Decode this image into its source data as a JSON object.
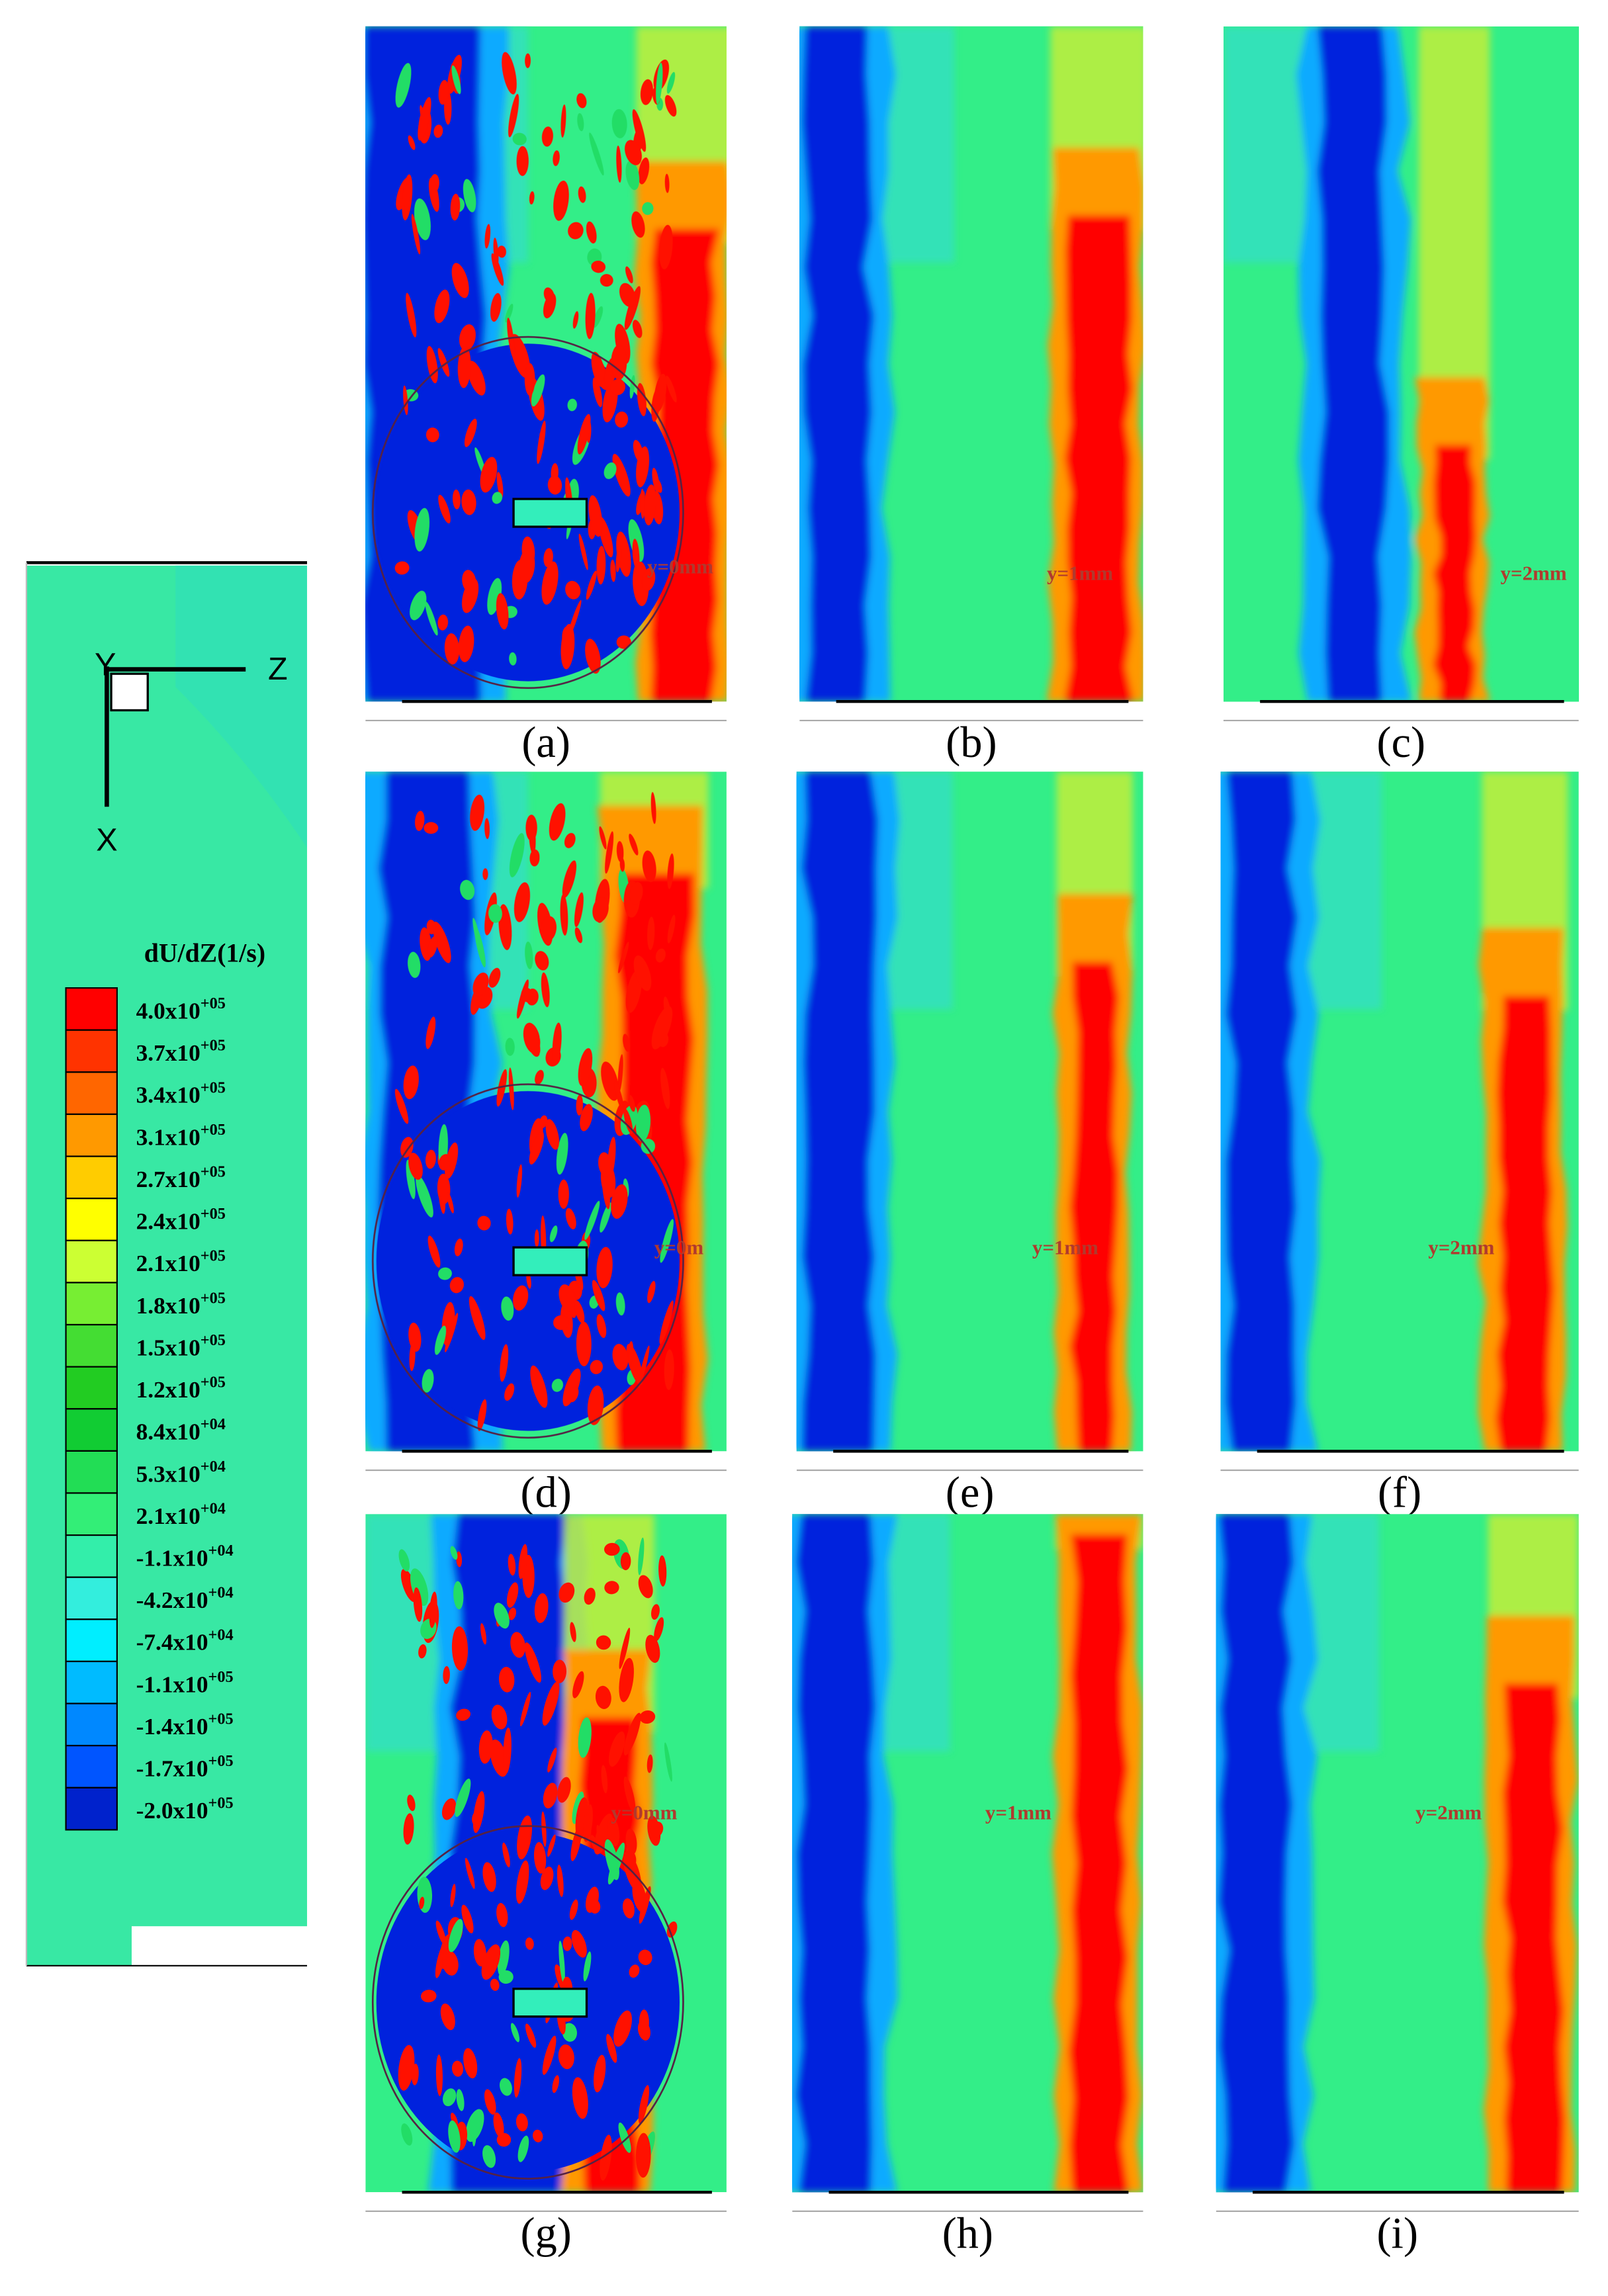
{
  "legend": {
    "title": "dU/dZ(1/s)",
    "levels": [
      {
        "base": "4.0x10",
        "exp": "+05",
        "color": "#ff0000"
      },
      {
        "base": "3.7x10",
        "exp": "+05",
        "color": "#ff3300"
      },
      {
        "base": "3.4x10",
        "exp": "+05",
        "color": "#ff6600"
      },
      {
        "base": "3.1x10",
        "exp": "+05",
        "color": "#ff9900"
      },
      {
        "base": "2.7x10",
        "exp": "+05",
        "color": "#ffcc00"
      },
      {
        "base": "2.4x10",
        "exp": "+05",
        "color": "#ffff00"
      },
      {
        "base": "2.1x10",
        "exp": "+05",
        "color": "#ccff33"
      },
      {
        "base": "1.8x10",
        "exp": "+05",
        "color": "#77ee33"
      },
      {
        "base": "1.5x10",
        "exp": "+05",
        "color": "#44dd33"
      },
      {
        "base": "1.2x10",
        "exp": "+05",
        "color": "#22cc22"
      },
      {
        "base": "8.4x10",
        "exp": "+04",
        "color": "#11cc33"
      },
      {
        "base": "5.3x10",
        "exp": "+04",
        "color": "#22dd55"
      },
      {
        "base": "2.1x10",
        "exp": "+04",
        "color": "#33ee77"
      },
      {
        "base": "-1.1x10",
        "exp": "+04",
        "color": "#33eeaa"
      },
      {
        "base": "-4.2x10",
        "exp": "+04",
        "color": "#33eedd"
      },
      {
        "base": "-7.4x10",
        "exp": "+04",
        "color": "#00eeff"
      },
      {
        "base": "-1.1x10",
        "exp": "+05",
        "color": "#00bbff"
      },
      {
        "base": "-1.4x10",
        "exp": "+05",
        "color": "#0088ff"
      },
      {
        "base": "-1.7x10",
        "exp": "+05",
        "color": "#0055ff"
      },
      {
        "base": "-2.0x10",
        "exp": "+05",
        "color": "#0022cc"
      }
    ]
  },
  "axes": {
    "y": "Y",
    "z": "Z",
    "x": "X"
  },
  "panels": [
    {
      "label": "(a)",
      "annotation": "y=0mm"
    },
    {
      "label": "(b)",
      "annotation": "y=1mm"
    },
    {
      "label": "(c)",
      "annotation": "y=2mm"
    },
    {
      "label": "(d)",
      "annotation": "y=0m"
    },
    {
      "label": "(e)",
      "annotation": "y=1mm"
    },
    {
      "label": "(f)",
      "annotation": "y=2mm"
    },
    {
      "label": "(g)",
      "annotation": "y=0mm"
    },
    {
      "label": "(h)",
      "annotation": "y=1mm"
    },
    {
      "label": "(i)",
      "annotation": "y=2mm"
    }
  ]
}
